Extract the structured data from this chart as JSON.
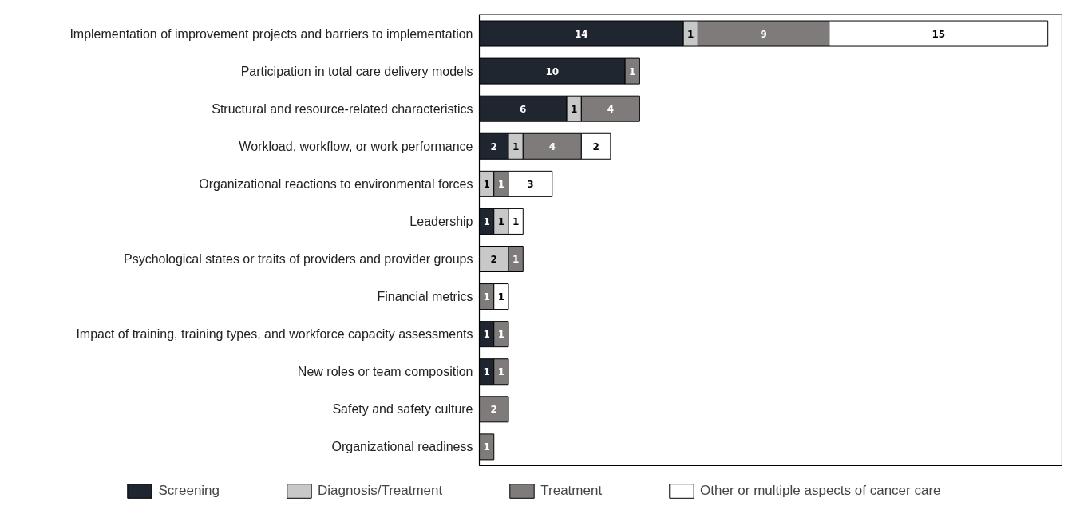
{
  "chart_data": {
    "type": "bar",
    "orientation": "horizontal",
    "stacked": true,
    "data_labels": true,
    "legend": "bottom",
    "grid": false,
    "categories": [
      "Implementation of improvement projects and barriers to implementation",
      "Participation in total care delivery models",
      "Structural and resource-related characteristics",
      "Workload, workflow, or work performance",
      "Organizational reactions to environmental forces",
      "Leadership",
      "Psychological states or traits of providers and provider groups",
      "Financial metrics",
      "Impact of training, training types, and workforce capacity assessments",
      "New roles or team composition",
      "Safety and safety culture",
      "Organizational readiness"
    ],
    "series": [
      {
        "name": "Screening",
        "color": "#1f2630",
        "values": [
          14,
          10,
          6,
          2,
          null,
          1,
          null,
          null,
          1,
          1,
          null,
          null
        ]
      },
      {
        "name": "Diagnosis/Treatment",
        "color": "#c8c8c8",
        "values": [
          1,
          null,
          1,
          1,
          1,
          1,
          2,
          null,
          null,
          null,
          null,
          null
        ]
      },
      {
        "name": "Treatment",
        "color": "#7f7b7b",
        "values": [
          9,
          1,
          4,
          4,
          1,
          null,
          1,
          1,
          1,
          1,
          2,
          1
        ]
      },
      {
        "name": "Other or multiple aspects of cancer care",
        "color": "#ffffff",
        "values": [
          15,
          null,
          null,
          2,
          3,
          1,
          null,
          1,
          null,
          null,
          null,
          null
        ]
      }
    ]
  }
}
